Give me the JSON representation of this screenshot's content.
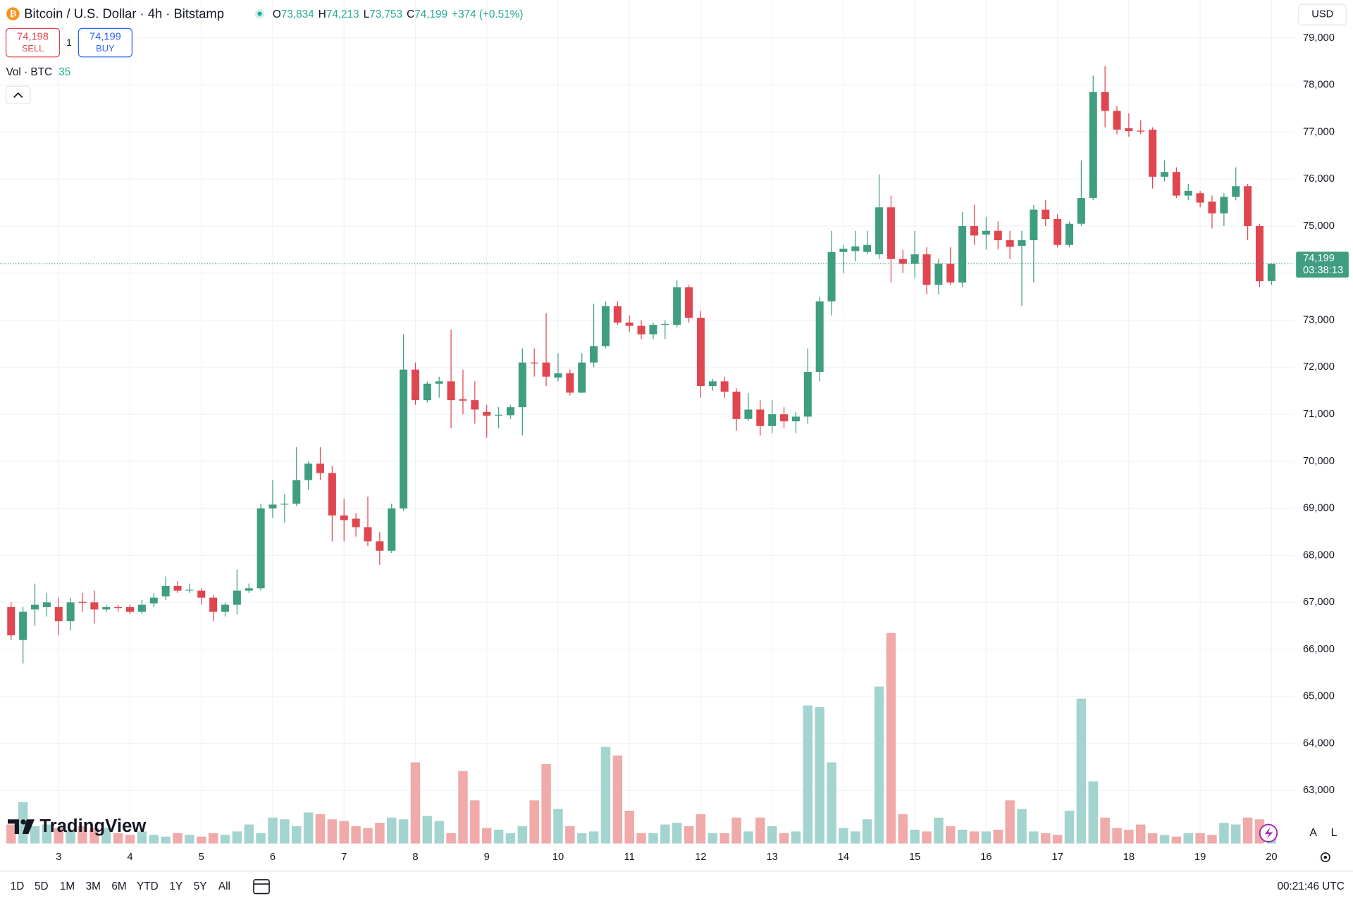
{
  "header": {
    "title": "Bitcoin / U.S. Dollar · 4h · Bitstamp",
    "legend": [
      {
        "label": "O",
        "value": "73,834"
      },
      {
        "label": "H",
        "value": "74,213"
      },
      {
        "label": "L",
        "value": "73,753"
      },
      {
        "label": "C",
        "value": "74,199"
      }
    ],
    "change": "+374 (+0.51%)",
    "sell": {
      "price": "74,198",
      "label": "SELL"
    },
    "quantity": "1",
    "buy": {
      "price": "74,199",
      "label": "BUY"
    },
    "volume_label": "Vol · BTC",
    "volume_value": "35",
    "currency": "USD"
  },
  "logo": "TradingView",
  "scale_buttons": [
    "A",
    "L"
  ],
  "toolbar": {
    "ranges": [
      "1D",
      "5D",
      "1M",
      "3M",
      "6M",
      "YTD",
      "1Y",
      "5Y",
      "All"
    ],
    "clock": "00:21:46 UTC"
  },
  "chart_data": {
    "type": "candlestick",
    "categories": [
      null,
      null,
      null,
      null,
      "3",
      null,
      null,
      null,
      null,
      null,
      "4",
      null,
      null,
      null,
      null,
      null,
      "5",
      null,
      null,
      null,
      null,
      null,
      "6",
      null,
      null,
      null,
      null,
      null,
      "7",
      null,
      null,
      null,
      null,
      null,
      "8",
      null,
      null,
      null,
      null,
      null,
      "9",
      null,
      null,
      null,
      null,
      null,
      "10",
      null,
      null,
      null,
      null,
      null,
      "11",
      null,
      null,
      null,
      null,
      null,
      "12",
      null,
      null,
      null,
      null,
      null,
      "13",
      null,
      null,
      null,
      null,
      null,
      "14",
      null,
      null,
      null,
      null,
      null,
      "15",
      null,
      null,
      null,
      null,
      null,
      "16",
      null,
      null,
      null,
      null,
      null,
      "17",
      null,
      null,
      null,
      null,
      null,
      "18",
      null,
      null,
      null,
      null,
      null,
      "19",
      null,
      null,
      null,
      null,
      null,
      "20"
    ],
    "open": [
      66900,
      66200,
      66850,
      66900,
      66900,
      66600,
      67010,
      67000,
      66850,
      66900,
      66900,
      66800,
      66980,
      67130,
      67350,
      67260,
      67250,
      67100,
      66800,
      66950,
      67250,
      67300,
      69000,
      69080,
      69100,
      69600,
      69950,
      69750,
      68850,
      68780,
      68600,
      68300,
      68100,
      69000,
      71950,
      71300,
      71650,
      71700,
      71320,
      71300,
      71050,
      70980,
      70980,
      71150,
      72100,
      72100,
      71780,
      71870,
      71460,
      72100,
      72450,
      73300,
      72950,
      72880,
      72700,
      72900,
      72900,
      73700,
      73050,
      71600,
      71700,
      71480,
      70900,
      71100,
      70750,
      71000,
      70850,
      70950,
      71900,
      73400,
      74450,
      74470,
      74450,
      74400,
      75400,
      74300,
      74200,
      74400,
      73750,
      74200,
      73800,
      75000,
      74820,
      74900,
      74700,
      74580,
      74700,
      75350,
      75150,
      74600,
      75050,
      75600,
      77850,
      77450,
      77080,
      77030,
      77050,
      76050,
      76150,
      75650,
      75700,
      75520,
      75270,
      75620,
      75850,
      75000,
      73834
    ],
    "high": [
      67000,
      66900,
      67400,
      67200,
      67100,
      67100,
      67200,
      67250,
      66950,
      66950,
      66950,
      67050,
      67200,
      67550,
      67450,
      67400,
      67300,
      67150,
      67000,
      67700,
      67400,
      69100,
      69600,
      69300,
      70300,
      70000,
      70300,
      69900,
      69200,
      68900,
      69250,
      68500,
      69100,
      72700,
      72100,
      71700,
      71800,
      72800,
      71950,
      71700,
      71200,
      71150,
      71200,
      72400,
      72400,
      73150,
      72300,
      71950,
      72300,
      73350,
      73400,
      73400,
      73100,
      73000,
      72950,
      73000,
      73850,
      73750,
      73200,
      71750,
      71800,
      71550,
      71450,
      71300,
      71300,
      71150,
      71050,
      72400,
      73500,
      74900,
      74600,
      74900,
      74900,
      76100,
      75650,
      74500,
      74900,
      74550,
      74300,
      74550,
      75300,
      75450,
      75200,
      75100,
      74900,
      74900,
      75450,
      75550,
      75250,
      75100,
      76400,
      78200,
      78400,
      77550,
      77400,
      77250,
      77100,
      76400,
      76250,
      75900,
      75750,
      75650,
      75700,
      76250,
      75900,
      75050,
      74213
    ],
    "low": [
      66200,
      65700,
      66500,
      66700,
      66300,
      66400,
      66800,
      66550,
      66800,
      66800,
      66750,
      66750,
      66900,
      67050,
      67200,
      67200,
      66950,
      66600,
      66700,
      66750,
      67200,
      67250,
      68800,
      68700,
      69050,
      69400,
      69600,
      68300,
      68300,
      68400,
      68200,
      67800,
      68050,
      68950,
      71200,
      71250,
      71350,
      70700,
      71000,
      70800,
      70500,
      70700,
      70900,
      70550,
      71800,
      71600,
      71700,
      71400,
      71450,
      72000,
      72400,
      72900,
      72750,
      72600,
      72600,
      72600,
      72850,
      72950,
      71350,
      71500,
      71350,
      70650,
      70850,
      70550,
      70600,
      70700,
      70600,
      70800,
      71700,
      73100,
      74000,
      74250,
      74400,
      74300,
      73800,
      74000,
      73900,
      73550,
      73550,
      73750,
      73700,
      74600,
      74500,
      74500,
      74300,
      73300,
      73800,
      75000,
      74550,
      74550,
      75000,
      75550,
      77100,
      76950,
      76900,
      76950,
      75800,
      75950,
      75600,
      75550,
      75400,
      74950,
      75000,
      75550,
      74700,
      73700,
      73753
    ],
    "close": [
      66300,
      66800,
      66950,
      67000,
      66600,
      67000,
      66990,
      66850,
      66900,
      66880,
      66800,
      66950,
      67100,
      67350,
      67250,
      67270,
      67100,
      66800,
      66950,
      67250,
      67300,
      69000,
      69080,
      69100,
      69600,
      69950,
      69750,
      68850,
      68750,
      68600,
      68300,
      68100,
      69000,
      71950,
      71300,
      71650,
      71700,
      71300,
      71290,
      71100,
      70970,
      70990,
      71150,
      72100,
      72080,
      71800,
      71870,
      71460,
      72100,
      72450,
      73300,
      72950,
      72880,
      72700,
      72900,
      72920,
      73700,
      73050,
      71600,
      71700,
      71480,
      70900,
      71100,
      70750,
      71000,
      70850,
      70950,
      71900,
      73400,
      74450,
      74520,
      74570,
      74600,
      75400,
      74300,
      74200,
      74400,
      73750,
      74200,
      73800,
      75000,
      74800,
      74900,
      74700,
      74560,
      74700,
      75350,
      75150,
      74600,
      75050,
      75600,
      77850,
      77450,
      77050,
      77020,
      77010,
      76050,
      76150,
      75650,
      75750,
      75500,
      75270,
      75620,
      75850,
      75000,
      73830,
      74199
    ],
    "volume": [
      66,
      144,
      60,
      66,
      54,
      45,
      60,
      54,
      54,
      36,
      30,
      42,
      30,
      24,
      36,
      30,
      24,
      36,
      30,
      42,
      66,
      36,
      90,
      84,
      60,
      108,
      102,
      84,
      78,
      60,
      54,
      72,
      90,
      84,
      282,
      96,
      78,
      36,
      252,
      150,
      54,
      48,
      36,
      60,
      150,
      276,
      120,
      60,
      36,
      42,
      336,
      306,
      114,
      36,
      36,
      66,
      72,
      60,
      102,
      36,
      36,
      90,
      42,
      90,
      60,
      36,
      42,
      480,
      474,
      282,
      54,
      42,
      84,
      546,
      732,
      102,
      48,
      42,
      90,
      60,
      48,
      42,
      42,
      48,
      150,
      120,
      42,
      36,
      30,
      114,
      504,
      216,
      90,
      54,
      48,
      66,
      36,
      30,
      24,
      36,
      36,
      30,
      72,
      66,
      90,
      84,
      35
    ],
    "up_color": "#3f9d80",
    "down_color": "#e04650",
    "volume_up_color": "#a4d4cf",
    "volume_down_color": "#efaaa9",
    "ylim": [
      61875,
      79807
    ],
    "yticks": [
      {
        "value": 63000,
        "label": "63,000"
      },
      {
        "value": 64000,
        "label": "64,000"
      },
      {
        "value": 65000,
        "label": "65,000"
      },
      {
        "value": 66000,
        "label": "66,000"
      },
      {
        "value": 67000,
        "label": "67,000"
      },
      {
        "value": 68000,
        "label": "68,000"
      },
      {
        "value": 69000,
        "label": "69,000"
      },
      {
        "value": 70000,
        "label": "70,000"
      },
      {
        "value": 71000,
        "label": "71,000"
      },
      {
        "value": 72000,
        "label": "72,000"
      },
      {
        "value": 73000,
        "label": "73,000"
      },
      {
        "value": 74000,
        "label": "74,000"
      },
      {
        "value": 75000,
        "label": "75,000"
      },
      {
        "value": 76000,
        "label": "76,000"
      },
      {
        "value": 77000,
        "label": "77,000"
      },
      {
        "value": 78000,
        "label": "78,000"
      },
      {
        "value": 79000,
        "label": "79,000"
      }
    ],
    "last_price": {
      "value": 74199,
      "label": "74,199"
    },
    "countdown": "03:38:13",
    "grid": true
  }
}
